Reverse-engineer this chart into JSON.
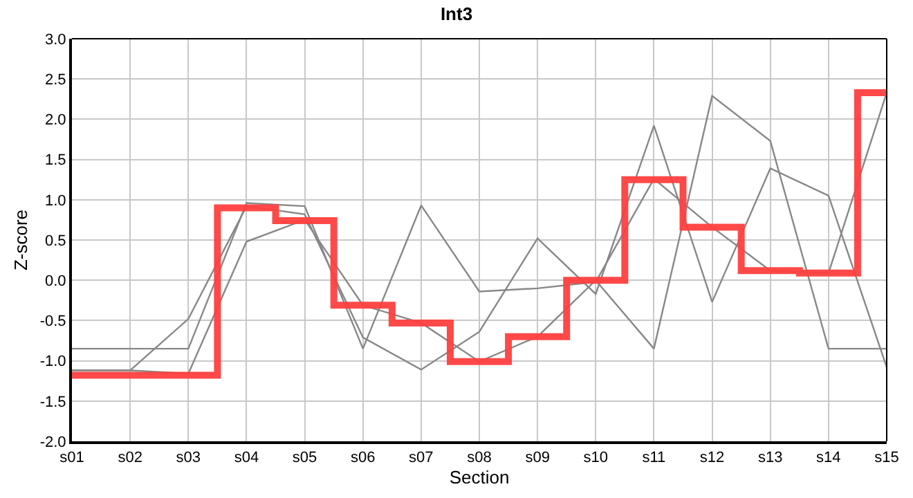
{
  "chart_data": {
    "type": "line",
    "title": "Int3",
    "xlabel": "Section",
    "ylabel": "Z-score",
    "categories": [
      "s01",
      "s02",
      "s03",
      "s04",
      "s05",
      "s06",
      "s07",
      "s08",
      "s09",
      "s10",
      "s11",
      "s12",
      "s13",
      "s14",
      "s15"
    ],
    "ylim": [
      -2,
      3
    ],
    "yticks": [
      {
        "value": -2,
        "label": "-2.0"
      },
      {
        "value": -1.5,
        "label": "-1.5"
      },
      {
        "value": -1,
        "label": "-1.0"
      },
      {
        "value": -0.5,
        "label": "-0.5"
      },
      {
        "value": 0,
        "label": "0.0"
      },
      {
        "value": 0.5,
        "label": "0.5"
      },
      {
        "value": 1,
        "label": "1.0"
      },
      {
        "value": 1.5,
        "label": "1.5"
      },
      {
        "value": 2,
        "label": "2.0"
      },
      {
        "value": 2.5,
        "label": "2.5"
      },
      {
        "value": 3,
        "label": "3.0"
      }
    ],
    "grid": true,
    "marker": "none",
    "series": [
      {
        "color": "#888888",
        "values": [
          -0.85,
          -0.85,
          -0.85,
          0.96,
          0.92,
          -0.85,
          0.93,
          -0.14,
          -0.1,
          -0.02,
          1.26,
          0.66,
          0.12,
          0.09,
          2.33
        ]
      },
      {
        "color": "#888888",
        "values": [
          -1.12,
          -1.12,
          -0.48,
          0.92,
          0.82,
          -0.71,
          -1.11,
          -0.64,
          0.52,
          -0.17,
          1.92,
          -0.27,
          1.39,
          1.05,
          -1.08
        ]
      },
      {
        "color": "#888888",
        "values": [
          -1.12,
          -1.12,
          -1.16,
          0.48,
          0.75,
          -0.31,
          -0.53,
          -1.01,
          -0.7,
          0.0,
          -0.85,
          2.29,
          1.73,
          -0.85,
          -0.85
        ]
      },
      {
        "type": "step",
        "color": "#ff4040",
        "values": [
          -1.18,
          -1.18,
          -1.18,
          0.9,
          0.74,
          -0.31,
          -0.53,
          -1.01,
          -0.7,
          0.0,
          1.25,
          0.66,
          0.12,
          0.09,
          2.33
        ]
      }
    ]
  }
}
